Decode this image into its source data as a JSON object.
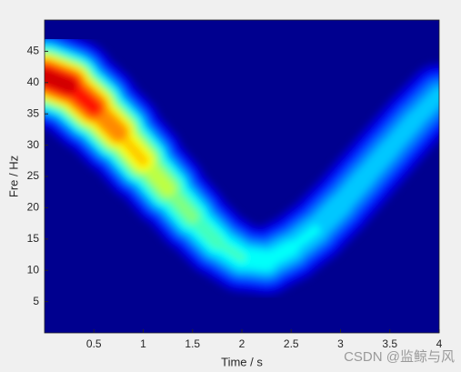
{
  "chart_data": {
    "type": "spectrogram",
    "xlabel": "Time / s",
    "ylabel": "Fre / Hz",
    "xlim": [
      0,
      4
    ],
    "xticks": [
      0.5,
      1,
      1.5,
      2,
      2.5,
      3,
      3.5,
      4
    ],
    "ylim": [
      0,
      50
    ],
    "yticks": [
      5,
      10,
      15,
      20,
      25,
      30,
      35,
      40,
      45
    ],
    "x": [
      0,
      0.25,
      0.5,
      0.75,
      1,
      1.25,
      1.5,
      1.75,
      2,
      2.25,
      2.5,
      2.75,
      3,
      3.25,
      3.5,
      3.75,
      4
    ],
    "ridge_frequency": [
      41,
      39.5,
      36,
      32,
      27.5,
      23,
      18.5,
      14.5,
      12,
      11.5,
      13.5,
      16.5,
      20.5,
      25,
      29.5,
      34,
      38
    ],
    "intensity": [
      1,
      0.95,
      0.85,
      0.75,
      0.65,
      0.55,
      0.5,
      0.45,
      0.45,
      0.42,
      0.4,
      0.38,
      0.37,
      0.36,
      0.36,
      0.35,
      0.35
    ],
    "bandwidth": [
      3.6,
      3.5,
      3.4,
      3.3,
      3.2,
      3.1,
      3,
      3,
      3,
      3,
      3,
      3,
      3,
      3,
      3,
      3,
      3
    ],
    "background": "#00008f",
    "watermark": "CSDN @监鲸与风"
  }
}
